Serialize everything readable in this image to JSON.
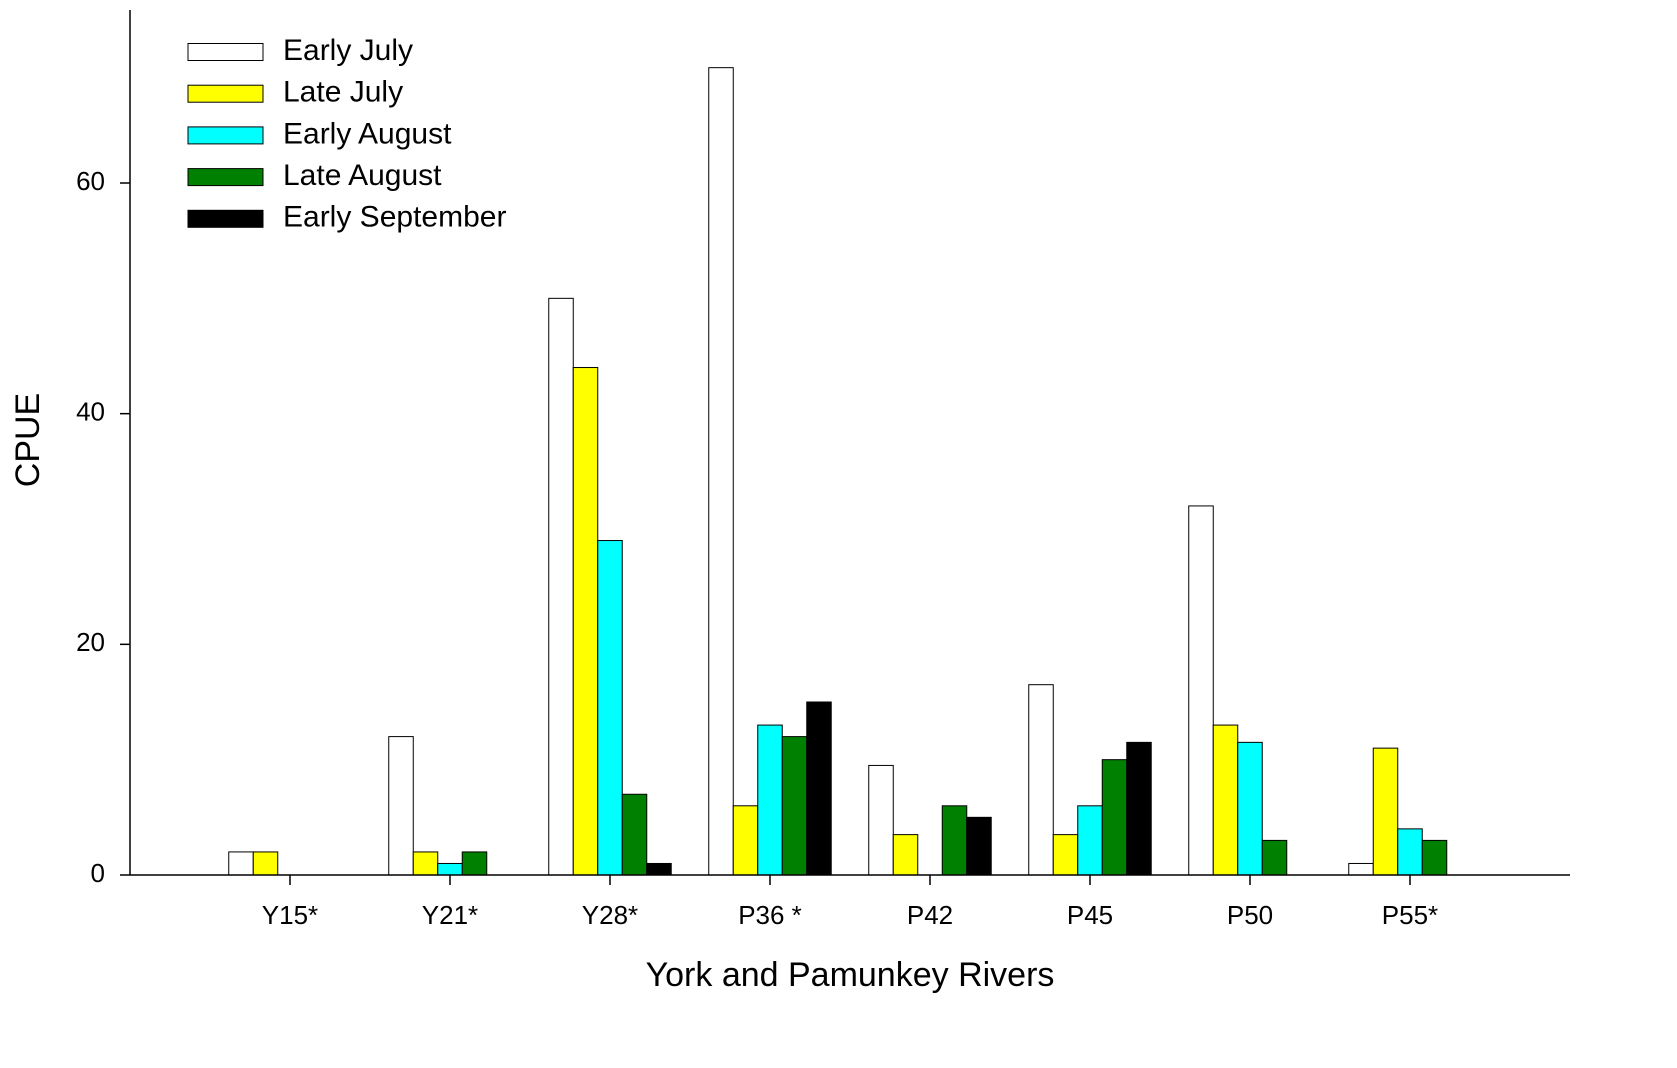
{
  "chart_data": {
    "type": "bar",
    "x_label": "York and Pamunkey Rivers",
    "y_label": "CPUE",
    "categories": [
      "Y15*",
      "Y21*",
      "Y28*",
      "P36 *",
      "P42",
      "P45",
      "P50",
      "P55*"
    ],
    "series": [
      {
        "name": "Early July",
        "color": "#ffffff",
        "values": [
          2,
          12,
          50,
          70,
          9.5,
          16.5,
          32,
          1
        ]
      },
      {
        "name": "Late July",
        "color": "#ffff00",
        "values": [
          2,
          2,
          44,
          6,
          3.5,
          3.5,
          13,
          11
        ]
      },
      {
        "name": "Early August",
        "color": "#00ffff",
        "values": [
          0,
          1,
          29,
          13,
          0,
          6,
          11.5,
          4
        ]
      },
      {
        "name": "Late August",
        "color": "#008000",
        "values": [
          0,
          2,
          7,
          12,
          6,
          10,
          3,
          3
        ]
      },
      {
        "name": "Early September",
        "color": "#000000",
        "values": [
          0,
          0,
          1,
          15,
          5,
          11.5,
          0,
          0
        ]
      }
    ],
    "ylim": [
      0,
      75
    ],
    "yticks": [
      0,
      20,
      40,
      60
    ],
    "grid": false,
    "legend": "top-left"
  }
}
